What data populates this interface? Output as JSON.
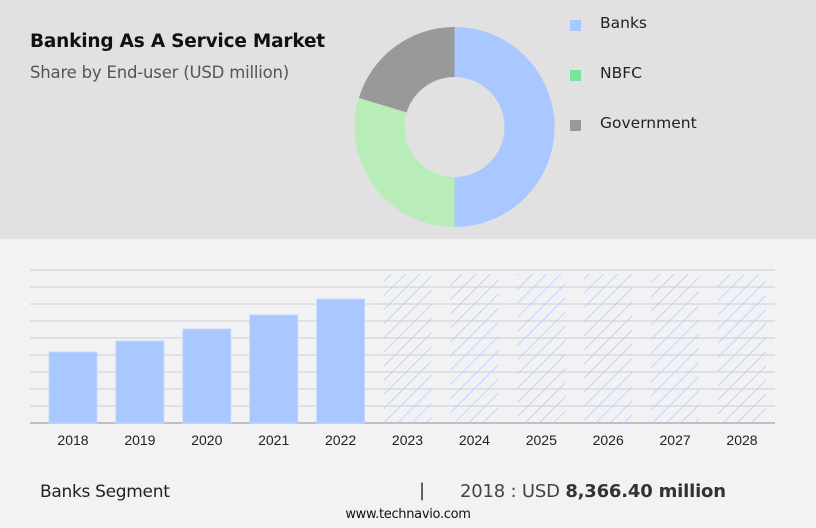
{
  "header": {
    "title": "Banking As A Service Market",
    "subtitle": "Share by End-user (USD million)"
  },
  "legend": {
    "items": [
      {
        "label": "Banks",
        "color": "#a8c8ff"
      },
      {
        "label": "NBFC",
        "color": "#7ae39a"
      },
      {
        "label": "Government",
        "color": "#999999"
      }
    ]
  },
  "footer": {
    "segment_label": "Banks Segment",
    "separator": "|",
    "year_prefix": "2018 : USD ",
    "value": "8,366.40 million",
    "url": "www.technavio.com"
  },
  "colors": {
    "top_background": "#e1e1e1",
    "bottom_background": "#f2f2f4",
    "bar_color": "#a8c8ff",
    "gridline": "#d6d6d8",
    "axis": "#b0b0b0"
  },
  "chart_data": [
    {
      "type": "pie",
      "variant": "donut",
      "title": "Banking As A Service Market",
      "subtitle": "Share by End-user (USD million)",
      "categories": [
        "Banks",
        "NBFC",
        "Government"
      ],
      "values": [
        50.0,
        29.7,
        20.3
      ],
      "unit": "% share (estimated from arc angles)",
      "colors": [
        "#a8c8ff",
        "#b8ecb9",
        "#999999"
      ],
      "legend_position": "right"
    },
    {
      "type": "bar",
      "title": "Banks Segment",
      "categories": [
        "2018",
        "2019",
        "2020",
        "2021",
        "2022",
        "2023",
        "2024",
        "2025",
        "2026",
        "2027",
        "2028"
      ],
      "values": [
        8366.4,
        9660,
        11080,
        12730,
        14610,
        null,
        null,
        null,
        null,
        null,
        null
      ],
      "forecast": [
        false,
        false,
        false,
        false,
        false,
        true,
        true,
        true,
        true,
        true,
        true
      ],
      "unit": "USD million",
      "note": "2018 value labeled; 2019-2022 estimated from bar heights; 2023-2028 shown as hatched forecast placeholders",
      "xlabel": "",
      "ylabel": "",
      "ylim": [
        0,
        21000
      ],
      "grid": true,
      "y_tick_labels_visible": false,
      "annotation": "2018 : USD 8,366.40 million"
    }
  ]
}
